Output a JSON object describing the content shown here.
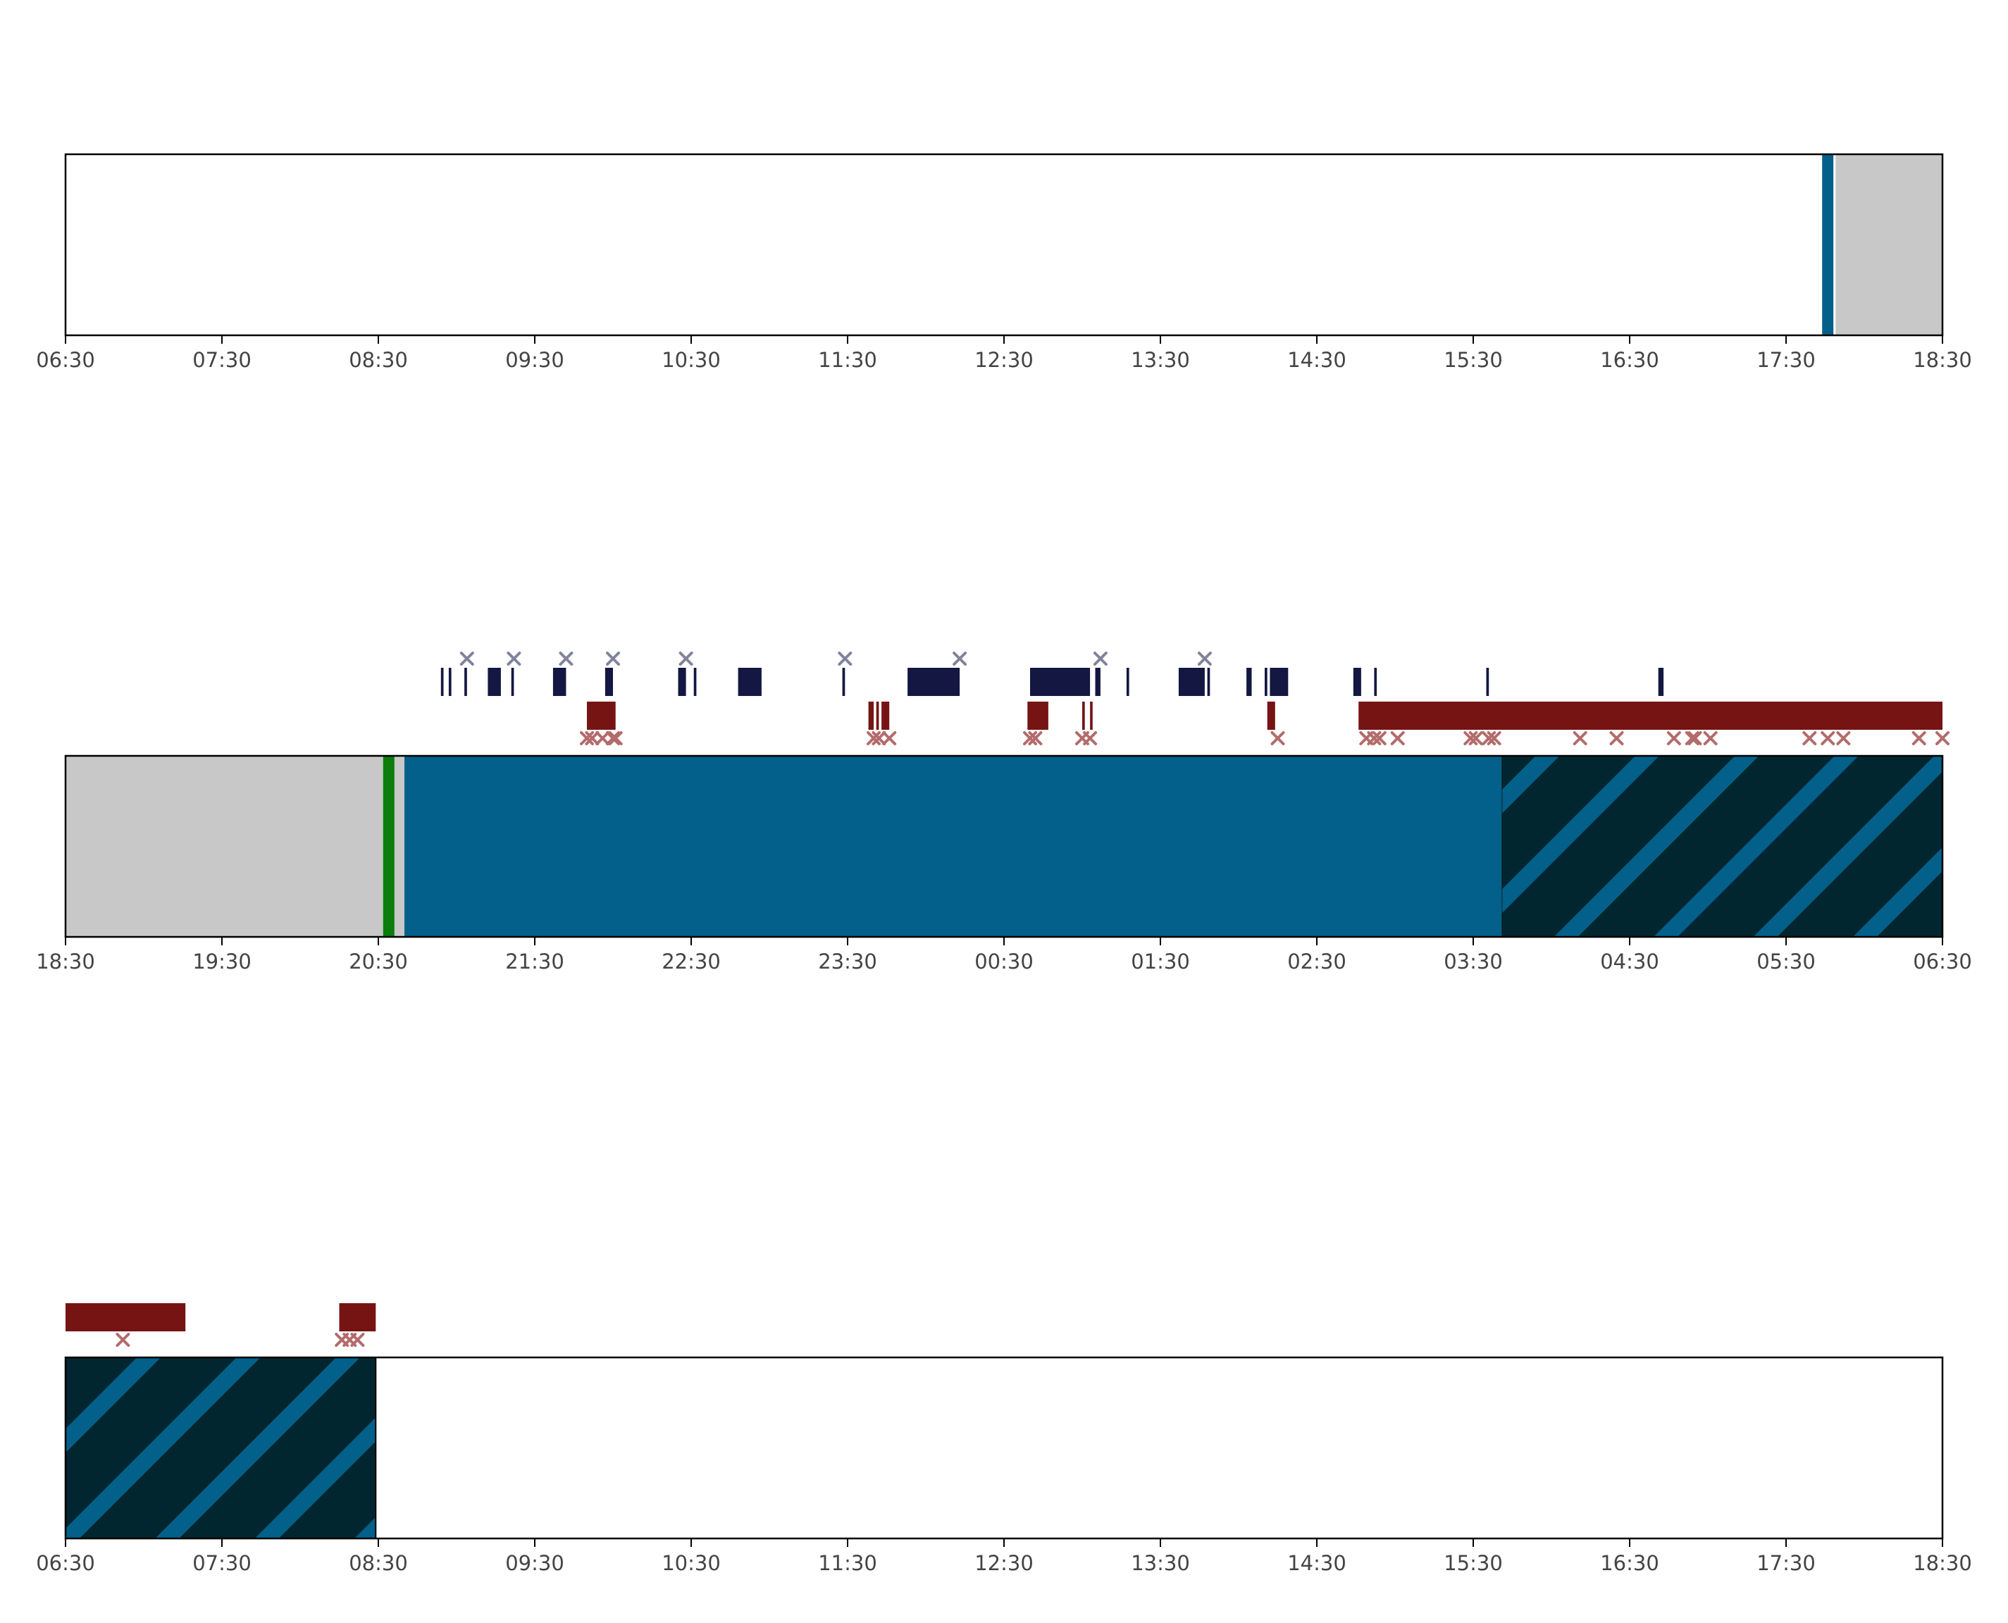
{
  "chart_data": [
    {
      "type": "timeline",
      "x_start": "06:30",
      "x_end": "18:30",
      "xticks": [
        "06:30",
        "07:30",
        "08:30",
        "09:30",
        "10:30",
        "11:30",
        "12:30",
        "13:30",
        "14:30",
        "15:30",
        "16:30",
        "17:30",
        "18:30"
      ],
      "background": [
        {
          "start": "06:30",
          "end": "17:49",
          "kind": "none"
        },
        {
          "start": "17:49",
          "end": "18:30",
          "kind": "grey"
        }
      ],
      "markers": [
        {
          "time": "17:46",
          "kind": "blue-line"
        }
      ],
      "dark_bars": [],
      "dark_x": [],
      "red_bars": [],
      "red_x": []
    },
    {
      "type": "timeline",
      "x_start": "18:30",
      "x_end": "06:30",
      "xticks": [
        "18:30",
        "19:30",
        "20:30",
        "21:30",
        "22:30",
        "23:30",
        "00:30",
        "01:30",
        "02:30",
        "03:30",
        "04:30",
        "05:30",
        "06:30"
      ],
      "background": [
        {
          "start": "18:30",
          "end": "20:40",
          "kind": "grey"
        },
        {
          "start": "20:40",
          "end": "03:41",
          "kind": "blue"
        },
        {
          "start": "03:41",
          "end": "06:30",
          "kind": "hatched"
        }
      ],
      "markers": [
        {
          "time": "20:34",
          "kind": "green-line"
        }
      ],
      "dark_bars": [
        [
          "20:54",
          "20:55"
        ],
        [
          "20:57",
          "20:58"
        ],
        [
          "21:03",
          "21:04"
        ],
        [
          "21:12",
          "21:17"
        ],
        [
          "21:21",
          "21:22"
        ],
        [
          "21:37",
          "21:42"
        ],
        [
          "21:57",
          "22:00"
        ],
        [
          "22:25",
          "22:28"
        ],
        [
          "22:31",
          "22:32"
        ],
        [
          "22:48",
          "22:57"
        ],
        [
          "23:28",
          "23:29"
        ],
        [
          "23:53",
          "24:13"
        ],
        [
          "24:40",
          "25:03"
        ],
        [
          "25:05",
          "25:07"
        ],
        [
          "25:17",
          "25:18"
        ],
        [
          "25:37",
          "25:47"
        ],
        [
          "25:48",
          "25:49"
        ],
        [
          "26:03",
          "26:05"
        ],
        [
          "26:10",
          "26:11"
        ],
        [
          "26:12",
          "26:19"
        ],
        [
          "26:44",
          "26:47"
        ],
        [
          "26:52",
          "26:53"
        ],
        [
          "27:35",
          "27:36"
        ],
        [
          "28:41",
          "28:43"
        ]
      ],
      "dark_x": [
        "21:04",
        "21:22",
        "21:42",
        "22:00",
        "22:28",
        "23:29",
        "24:13",
        "25:07",
        "25:47"
      ],
      "red_bars": [
        [
          "21:50",
          "22:01"
        ],
        [
          "23:38",
          "23:40"
        ],
        [
          "23:41",
          "23:42"
        ],
        [
          "23:43",
          "23:46"
        ],
        [
          "24:39",
          "24:47"
        ],
        [
          "25:00",
          "25:01"
        ],
        [
          "25:03",
          "25:04"
        ],
        [
          "26:11",
          "26:14"
        ],
        [
          "26:46",
          "30:30"
        ]
      ],
      "red_x": [
        "21:50",
        "21:52",
        "21:56",
        "22:00",
        "22:01",
        "23:40",
        "23:42",
        "23:46",
        "24:40",
        "24:42",
        "25:00",
        "25:03",
        "26:15",
        "26:49",
        "26:52",
        "26:54",
        "27:01",
        "27:29",
        "27:31",
        "27:36",
        "27:38",
        "28:11",
        "28:25",
        "28:47",
        "28:54",
        "28:55",
        "29:01",
        "29:39",
        "29:46",
        "29:52",
        "30:21",
        "30:30"
      ]
    },
    {
      "type": "timeline",
      "x_start": "06:30",
      "x_end": "18:30",
      "xticks": [
        "06:30",
        "07:30",
        "08:30",
        "09:30",
        "10:30",
        "11:30",
        "12:30",
        "13:30",
        "14:30",
        "15:30",
        "16:30",
        "17:30",
        "18:30"
      ],
      "background": [
        {
          "start": "06:30",
          "end": "08:29",
          "kind": "hatched"
        },
        {
          "start": "08:29",
          "end": "18:30",
          "kind": "none"
        }
      ],
      "markers": [],
      "dark_bars": [],
      "dark_x": [],
      "red_bars": [
        [
          "06:30",
          "07:16"
        ],
        [
          "08:15",
          "08:29"
        ]
      ],
      "red_x": [
        "06:52",
        "08:16",
        "08:19",
        "08:22"
      ]
    }
  ],
  "colors": {
    "grey": "#c8c8c8",
    "blue": "#03608a",
    "hatch_dark": "#02262f",
    "dark_bar": "#141741",
    "red_bar": "#761414",
    "red_x": "#b36b6b",
    "dark_x": "#82839a",
    "green": "#0a7d0a",
    "axis": "#000000",
    "tick_label": "#444444"
  }
}
